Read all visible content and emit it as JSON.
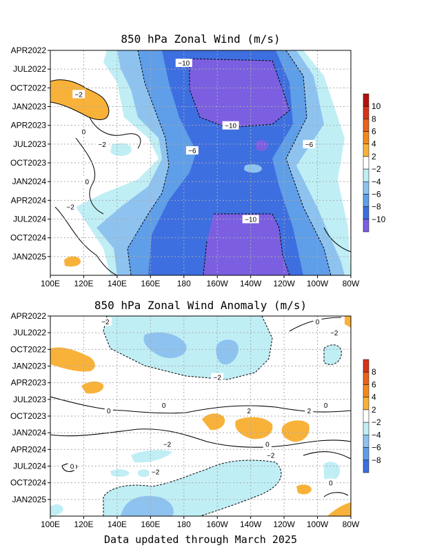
{
  "colors": {
    "n10": "#7c5fe0",
    "n8": "#3d6fe0",
    "n6": "#5f9ee8",
    "n4": "#8ec3f0",
    "n2": "#c0eef5",
    "white": "#ffffff",
    "p2": "#f9b239",
    "p4": "#f28a1b",
    "p6": "#e8631c",
    "p8": "#d63318",
    "p10": "#b3120f"
  },
  "footer": "Data updated through March 2025",
  "chart_data": [
    {
      "type": "heatmap",
      "title": "850 hPa Zonal Wind (m/s)",
      "x_ticks": [
        "100E",
        "120E",
        "140E",
        "160E",
        "180",
        "160W",
        "140W",
        "120W",
        "100W",
        "80W"
      ],
      "y_ticks": [
        "APR2022",
        "JUL2022",
        "OCT2022",
        "JAN2023",
        "APR2023",
        "JUL2023",
        "OCT2023",
        "JAN2024",
        "APR2024",
        "JUL2024",
        "OCT2024",
        "JAN2025"
      ],
      "colorbar_labels": [
        "10",
        "8",
        "6",
        "4",
        "2",
        "−2",
        "−4",
        "−6",
        "−8",
        "−10"
      ],
      "colorbar_keys": [
        "p10",
        "p8",
        "p6",
        "p4",
        "p2",
        "white",
        "n2",
        "n4",
        "n6",
        "n8",
        "n10"
      ],
      "contour_labels": [
        {
          "text": "−10",
          "lon": 180,
          "month": 2
        },
        {
          "text": "−2",
          "lon": 117,
          "month": 7
        },
        {
          "text": "0",
          "lon": 120,
          "month": 13
        },
        {
          "text": "−2",
          "lon": 131,
          "month": 15
        },
        {
          "text": "0",
          "lon": 122,
          "month": 21
        },
        {
          "text": "−2",
          "lon": 112,
          "month": 25
        },
        {
          "text": "−6",
          "lon": 185,
          "month": 16
        },
        {
          "text": "−10",
          "lon": 208,
          "month": 12
        },
        {
          "text": "−6",
          "lon": 255,
          "month": 15
        },
        {
          "text": "−10",
          "lon": 220,
          "month": 27
        }
      ],
      "y_range": [
        "APR2022",
        "MAR2025"
      ],
      "x_range": [
        "100E",
        "80W"
      ]
    },
    {
      "type": "heatmap",
      "title": "850 hPa Zonal Wind Anomaly (m/s)",
      "x_ticks": [
        "100E",
        "120E",
        "140E",
        "160E",
        "180",
        "160W",
        "140W",
        "120W",
        "100W",
        "80W"
      ],
      "y_ticks": [
        "APR2022",
        "JUL2022",
        "OCT2022",
        "JAN2023",
        "APR2023",
        "JUL2023",
        "OCT2023",
        "JAN2024",
        "APR2024",
        "JUL2024",
        "OCT2024",
        "JAN2025"
      ],
      "colorbar_labels": [
        "8",
        "6",
        "4",
        "2",
        "−2",
        "−4",
        "−6",
        "−8"
      ],
      "colorbar_keys": [
        "p8",
        "p6",
        "p4",
        "p2",
        "white",
        "n2",
        "n4",
        "n6",
        "n8"
      ],
      "contour_labels": [
        {
          "text": "−2",
          "lon": 133,
          "month": 1
        },
        {
          "text": "0",
          "lon": 260,
          "month": 1
        },
        {
          "text": "−2",
          "lon": 270,
          "month": 3
        },
        {
          "text": "−2",
          "lon": 200,
          "month": 11
        },
        {
          "text": "0",
          "lon": 135,
          "month": 17
        },
        {
          "text": "0",
          "lon": 168,
          "month": 16
        },
        {
          "text": "0",
          "lon": 265,
          "month": 16
        },
        {
          "text": "2",
          "lon": 219,
          "month": 17
        },
        {
          "text": "2",
          "lon": 255,
          "month": 17
        },
        {
          "text": "−2",
          "lon": 170,
          "month": 23
        },
        {
          "text": "0",
          "lon": 230,
          "month": 23
        },
        {
          "text": "−2",
          "lon": 232,
          "month": 25
        },
        {
          "text": "0",
          "lon": 113,
          "month": 27
        },
        {
          "text": "−2",
          "lon": 163,
          "month": 28
        },
        {
          "text": "0",
          "lon": 268,
          "month": 30
        }
      ],
      "y_range": [
        "APR2022",
        "MAR2025"
      ],
      "x_range": [
        "100E",
        "80W"
      ]
    }
  ]
}
